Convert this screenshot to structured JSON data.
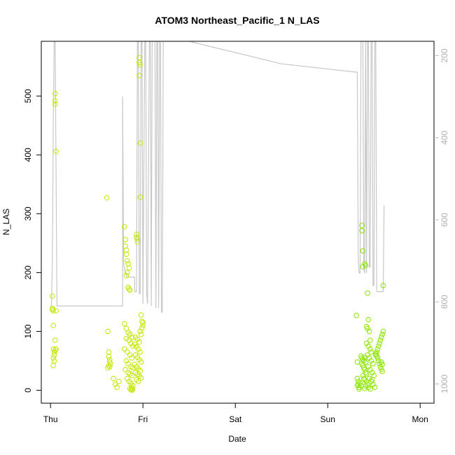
{
  "chart_data": {
    "type": "scatter",
    "title": "ATOM3 Northeast_Pacific_1 N_LAS",
    "xlabel": "Date",
    "ylabel": "N_LAS",
    "x_ticks": [
      {
        "label": "Thu",
        "day": 0
      },
      {
        "label": "Fri",
        "day": 1
      },
      {
        "label": "Sat",
        "day": 2
      },
      {
        "label": "Sun",
        "day": 3
      },
      {
        "label": "Mon",
        "day": 4
      }
    ],
    "xlim": [
      -0.1,
      4.15
    ],
    "ylim": [
      -22,
      593
    ],
    "y_ticks": [
      0,
      100,
      200,
      300,
      400,
      500
    ],
    "right_axis": {
      "quantity": "altitude",
      "ylim": [
        1047,
        165
      ],
      "ticks": [
        200,
        400,
        600,
        800,
        1000
      ],
      "color": "#bbbbbb"
    },
    "altitude_line": {
      "color": "#c8c8c8",
      "points": [
        [
          0.0,
          810
        ],
        [
          0.01,
          810
        ],
        [
          0.02,
          700
        ],
        [
          0.03,
          350
        ],
        [
          0.04,
          165
        ],
        [
          0.05,
          165
        ],
        [
          0.07,
          810
        ],
        [
          0.3,
          810
        ],
        [
          0.6,
          810
        ],
        [
          0.78,
          810
        ],
        [
          0.78,
          300
        ],
        [
          0.79,
          700
        ],
        [
          0.8,
          720
        ],
        [
          0.83,
          740
        ],
        [
          0.88,
          740
        ],
        [
          0.91,
          740
        ],
        [
          0.91,
          775
        ],
        [
          0.93,
          775
        ],
        [
          0.94,
          165
        ],
        [
          0.95,
          165
        ],
        [
          0.96,
          780
        ],
        [
          0.97,
          780
        ],
        [
          0.98,
          165
        ],
        [
          0.99,
          165
        ],
        [
          1.0,
          805
        ],
        [
          1.02,
          165
        ],
        [
          1.03,
          165
        ],
        [
          1.04,
          780
        ],
        [
          1.05,
          805
        ],
        [
          1.07,
          165
        ],
        [
          1.08,
          165
        ],
        [
          1.09,
          810
        ],
        [
          1.1,
          165
        ],
        [
          1.13,
          165
        ],
        [
          1.14,
          815
        ],
        [
          1.15,
          165
        ],
        [
          1.16,
          165
        ],
        [
          1.17,
          815
        ],
        [
          1.18,
          165
        ],
        [
          1.19,
          170
        ],
        [
          1.2,
          825
        ],
        [
          1.21,
          825
        ],
        [
          1.22,
          165
        ],
        [
          1.5,
          165
        ],
        [
          2.5,
          220
        ],
        [
          3.3,
          240
        ],
        [
          3.32,
          240
        ],
        [
          3.33,
          700
        ],
        [
          3.34,
          730
        ],
        [
          3.35,
          730
        ],
        [
          3.36,
          165
        ],
        [
          3.38,
          165
        ],
        [
          3.39,
          720
        ],
        [
          3.4,
          730
        ],
        [
          3.41,
          165
        ],
        [
          3.42,
          730
        ],
        [
          3.43,
          165
        ],
        [
          3.44,
          165
        ],
        [
          3.45,
          715
        ],
        [
          3.46,
          715
        ],
        [
          3.47,
          165
        ],
        [
          3.48,
          165
        ],
        [
          3.49,
          760
        ],
        [
          3.5,
          760
        ],
        [
          3.51,
          165
        ],
        [
          3.52,
          165
        ],
        [
          3.53,
          775
        ],
        [
          3.56,
          775
        ],
        [
          3.6,
          775
        ],
        [
          3.61,
          565
        ]
      ]
    },
    "series": [
      {
        "name": "",
        "color": "#c6e600",
        "points": [
          [
            0.02,
            160
          ],
          [
            0.02,
            139
          ],
          [
            0.02,
            137
          ],
          [
            0.03,
            135
          ],
          [
            0.03,
            110
          ],
          [
            0.03,
            70
          ],
          [
            0.04,
            65
          ],
          [
            0.04,
            60
          ],
          [
            0.03,
            55
          ],
          [
            0.04,
            50
          ],
          [
            0.03,
            42
          ],
          [
            0.05,
            504
          ],
          [
            0.05,
            492
          ],
          [
            0.05,
            486
          ],
          [
            0.06,
            406
          ],
          [
            0.06,
            135
          ],
          [
            0.05,
            85
          ],
          [
            0.05,
            68
          ],
          [
            0.06,
            70
          ],
          [
            0.61,
            327
          ],
          [
            0.62,
            100
          ],
          [
            0.63,
            65
          ],
          [
            0.63,
            57
          ],
          [
            0.64,
            52
          ],
          [
            0.64,
            48
          ],
          [
            0.65,
            45
          ],
          [
            0.63,
            42
          ],
          [
            0.64,
            40
          ],
          [
            0.62,
            38
          ],
          [
            0.68,
            20
          ],
          [
            0.7,
            10
          ],
          [
            0.72,
            5
          ],
          [
            0.74,
            15
          ],
          [
            0.8,
            278
          ],
          [
            0.81,
            256
          ],
          [
            0.81,
            245
          ],
          [
            0.82,
            238
          ],
          [
            0.82,
            231
          ],
          [
            0.83,
            220
          ],
          [
            0.84,
            215
          ],
          [
            0.85,
            208
          ],
          [
            0.83,
            200
          ],
          [
            0.82,
            195
          ],
          [
            0.84,
            175
          ],
          [
            0.85,
            172
          ],
          [
            0.86,
            170
          ],
          [
            0.8,
            113
          ],
          [
            0.82,
            105
          ],
          [
            0.84,
            98
          ],
          [
            0.86,
            95
          ],
          [
            0.88,
            90
          ],
          [
            0.82,
            88
          ],
          [
            0.85,
            85
          ],
          [
            0.87,
            80
          ],
          [
            0.89,
            75
          ],
          [
            0.8,
            70
          ],
          [
            0.83,
            65
          ],
          [
            0.86,
            60
          ],
          [
            0.88,
            55
          ],
          [
            0.82,
            50
          ],
          [
            0.84,
            45
          ],
          [
            0.87,
            40
          ],
          [
            0.89,
            38
          ],
          [
            0.81,
            35
          ],
          [
            0.84,
            30
          ],
          [
            0.86,
            28
          ],
          [
            0.88,
            25
          ],
          [
            0.83,
            20
          ],
          [
            0.85,
            15
          ],
          [
            0.87,
            12
          ],
          [
            0.89,
            8
          ],
          [
            0.86,
            3
          ],
          [
            0.87,
            1
          ],
          [
            0.88,
            0
          ],
          [
            0.89,
            2
          ],
          [
            0.88,
            4
          ],
          [
            0.93,
            265
          ],
          [
            0.93,
            260
          ],
          [
            0.94,
            257
          ],
          [
            0.94,
            252
          ],
          [
            0.96,
            565
          ],
          [
            0.96,
            557
          ],
          [
            0.97,
            553
          ],
          [
            0.96,
            535
          ],
          [
            0.97,
            420
          ],
          [
            0.97,
            328
          ],
          [
            0.98,
            128
          ],
          [
            0.99,
            117
          ],
          [
            1.0,
            115
          ],
          [
            1.0,
            110
          ],
          [
            0.99,
            106
          ],
          [
            0.97,
            100
          ],
          [
            0.98,
            95
          ],
          [
            0.92,
            90
          ],
          [
            0.94,
            87
          ],
          [
            0.96,
            82
          ],
          [
            0.91,
            78
          ],
          [
            0.93,
            74
          ],
          [
            0.95,
            70
          ],
          [
            0.97,
            65
          ],
          [
            0.92,
            60
          ],
          [
            0.94,
            56
          ],
          [
            0.96,
            52
          ],
          [
            0.98,
            48
          ],
          [
            0.91,
            44
          ],
          [
            0.93,
            40
          ],
          [
            0.95,
            36
          ],
          [
            0.97,
            33
          ],
          [
            0.92,
            30
          ],
          [
            0.94,
            27
          ],
          [
            0.96,
            24
          ],
          [
            0.98,
            21
          ],
          [
            0.93,
            18
          ],
          [
            0.95,
            15
          ]
        ]
      },
      {
        "name": "",
        "color": "#8ce600",
        "points": [
          [
            3.31,
            127
          ],
          [
            3.32,
            48
          ],
          [
            3.32,
            20
          ],
          [
            3.33,
            15
          ],
          [
            3.33,
            10
          ],
          [
            3.34,
            5
          ],
          [
            3.34,
            2
          ],
          [
            3.32,
            8
          ],
          [
            3.35,
            12
          ],
          [
            3.36,
            8
          ],
          [
            3.37,
            280
          ],
          [
            3.37,
            271
          ],
          [
            3.38,
            237
          ],
          [
            3.38,
            210
          ],
          [
            3.4,
            215
          ],
          [
            3.41,
            212
          ],
          [
            3.43,
            165
          ],
          [
            3.36,
            58
          ],
          [
            3.37,
            55
          ],
          [
            3.38,
            52
          ],
          [
            3.39,
            50
          ],
          [
            3.4,
            56
          ],
          [
            3.41,
            48
          ],
          [
            3.37,
            45
          ],
          [
            3.38,
            42
          ],
          [
            3.39,
            38
          ],
          [
            3.4,
            35
          ],
          [
            3.41,
            30
          ],
          [
            3.42,
            28
          ],
          [
            3.38,
            25
          ],
          [
            3.39,
            20
          ],
          [
            3.4,
            18
          ],
          [
            3.42,
            15
          ],
          [
            3.43,
            10
          ],
          [
            3.41,
            7
          ],
          [
            3.44,
            5
          ],
          [
            3.4,
            3
          ],
          [
            3.42,
            108
          ],
          [
            3.43,
            105
          ],
          [
            3.44,
            120
          ],
          [
            3.45,
            100
          ],
          [
            3.46,
            85
          ],
          [
            3.42,
            80
          ],
          [
            3.44,
            75
          ],
          [
            3.46,
            70
          ],
          [
            3.47,
            65
          ],
          [
            3.43,
            60
          ],
          [
            3.45,
            55
          ],
          [
            3.47,
            50
          ],
          [
            3.49,
            45
          ],
          [
            3.44,
            40
          ],
          [
            3.46,
            35
          ],
          [
            3.48,
            30
          ],
          [
            3.5,
            25
          ],
          [
            3.45,
            20
          ],
          [
            3.47,
            15
          ],
          [
            3.49,
            10
          ],
          [
            3.51,
            5
          ],
          [
            3.46,
            2
          ],
          [
            3.48,
            18
          ],
          [
            3.52,
            62
          ],
          [
            3.53,
            58
          ],
          [
            3.54,
            55
          ],
          [
            3.55,
            50
          ],
          [
            3.56,
            45
          ],
          [
            3.57,
            40
          ],
          [
            3.58,
            36
          ],
          [
            3.59,
            32
          ],
          [
            3.6,
            178
          ],
          [
            3.6,
            100
          ],
          [
            3.59,
            95
          ],
          [
            3.58,
            90
          ],
          [
            3.57,
            85
          ],
          [
            3.56,
            80
          ],
          [
            3.55,
            75
          ],
          [
            3.54,
            70
          ],
          [
            3.53,
            65
          ],
          [
            3.52,
            60
          ],
          [
            3.58,
            48
          ],
          [
            3.59,
            44
          ]
        ]
      }
    ]
  }
}
